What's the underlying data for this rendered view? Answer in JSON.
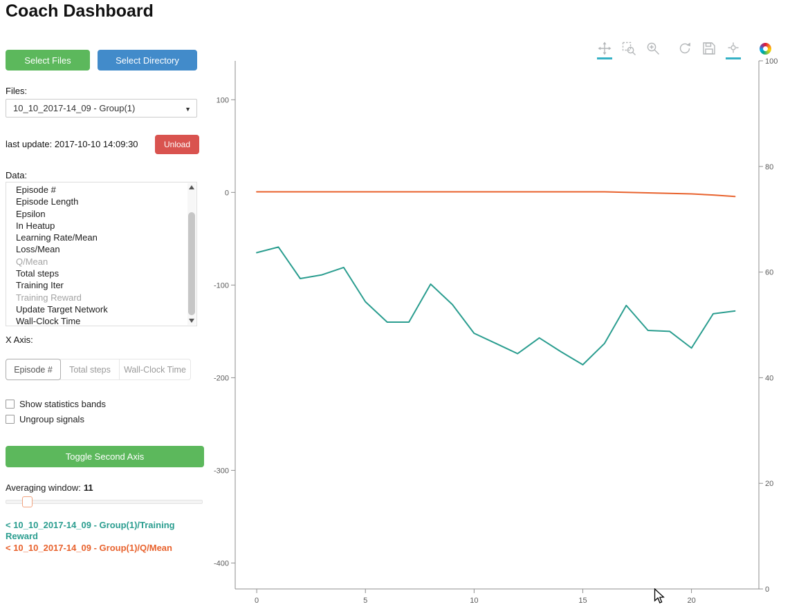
{
  "page": {
    "title": "Coach Dashboard"
  },
  "colors": {
    "button_green": "#5cb85c",
    "button_blue": "#428bca",
    "button_red": "#d9534f",
    "series_teal": "#2a9d8f",
    "series_orange": "#e8622d",
    "active_tool_underline": "#35b1c5"
  },
  "sidebar": {
    "select_files_label": "Select Files",
    "select_directory_label": "Select Directory",
    "files_label": "Files:",
    "files_dropdown_value": "10_10_2017-14_09 - Group(1)",
    "last_update": "last update: 2017-10-10 14:09:30",
    "unload_label": "Unload",
    "data_label": "Data:",
    "data_items": [
      {
        "label": "Episode #",
        "muted": false
      },
      {
        "label": "Episode Length",
        "muted": false
      },
      {
        "label": "Epsilon",
        "muted": false
      },
      {
        "label": "In Heatup",
        "muted": false
      },
      {
        "label": "Learning Rate/Mean",
        "muted": false
      },
      {
        "label": "Loss/Mean",
        "muted": false
      },
      {
        "label": "Q/Mean",
        "muted": true
      },
      {
        "label": "Total steps",
        "muted": false
      },
      {
        "label": "Training Iter",
        "muted": false
      },
      {
        "label": "Training Reward",
        "muted": true
      },
      {
        "label": "Update Target Network",
        "muted": false
      },
      {
        "label": "Wall-Clock Time",
        "muted": false
      }
    ],
    "x_axis_label": "X Axis:",
    "x_axis_options": [
      {
        "label": "Episode #",
        "active": true
      },
      {
        "label": "Total steps",
        "active": false
      },
      {
        "label": "Wall-Clock Time",
        "active": false
      }
    ],
    "checkboxes": [
      {
        "label": "Show statistics bands",
        "checked": false
      },
      {
        "label": "Ungroup signals",
        "checked": false
      }
    ],
    "toggle_second_axis_label": "Toggle Second Axis",
    "averaging_window_label": "Averaging window:",
    "averaging_window_value": "11",
    "legend": [
      {
        "label": "< 10_10_2017-14_09 - Group(1)/Training Reward",
        "color": "#2a9d8f"
      },
      {
        "label": "< 10_10_2017-14_09 - Group(1)/Q/Mean",
        "color": "#e8622d"
      }
    ]
  },
  "toolbar": {
    "tools": [
      {
        "icon": "pan-icon",
        "active": true
      },
      {
        "icon": "box-zoom-icon",
        "active": false
      },
      {
        "icon": "wheel-zoom-icon",
        "active": false
      },
      {
        "icon": "reset-icon",
        "active": false
      },
      {
        "icon": "save-icon",
        "active": false
      },
      {
        "icon": "hover-icon",
        "active": true
      },
      {
        "icon": "bokeh-logo",
        "active": false
      }
    ]
  },
  "chart_data": {
    "type": "line",
    "x": [
      0,
      1,
      2,
      3,
      4,
      5,
      6,
      7,
      8,
      9,
      10,
      11,
      12,
      13,
      14,
      15,
      16,
      17,
      18,
      19,
      20,
      21,
      22
    ],
    "series": [
      {
        "name": "10_10_2017-14_09 - Group(1)/Training Reward",
        "axis": "left",
        "color": "#2a9d8f",
        "values": [
          -65,
          -59,
          -93,
          -89,
          -81,
          -118,
          -140,
          -140,
          -99,
          -121,
          -152,
          -163,
          -174,
          -157,
          -172,
          -186,
          -163,
          -122,
          -149,
          -150,
          -168,
          -131,
          -128
        ]
      },
      {
        "name": "10_10_2017-14_09 - Group(1)/Q/Mean",
        "axis": "right",
        "color": "#e8622d",
        "values": [
          75.2,
          75.2,
          75.2,
          75.2,
          75.2,
          75.2,
          75.2,
          75.2,
          75.2,
          75.2,
          75.2,
          75.2,
          75.2,
          75.2,
          75.2,
          75.2,
          75.2,
          75.1,
          75.0,
          74.9,
          74.8,
          74.6,
          74.3
        ]
      }
    ],
    "xlim": [
      -0.99,
      23.1
    ],
    "ylim_left": [
      -428,
      142
    ],
    "ylim_right": [
      0,
      100
    ],
    "x_ticks": [
      0,
      5,
      10,
      15,
      20
    ],
    "y_ticks_left": [
      100,
      0,
      -100,
      -200,
      -300,
      -400
    ],
    "y_ticks_right": [
      100,
      80,
      60,
      40,
      20,
      0
    ],
    "grid": false,
    "legend_position": "left-sidebar"
  }
}
